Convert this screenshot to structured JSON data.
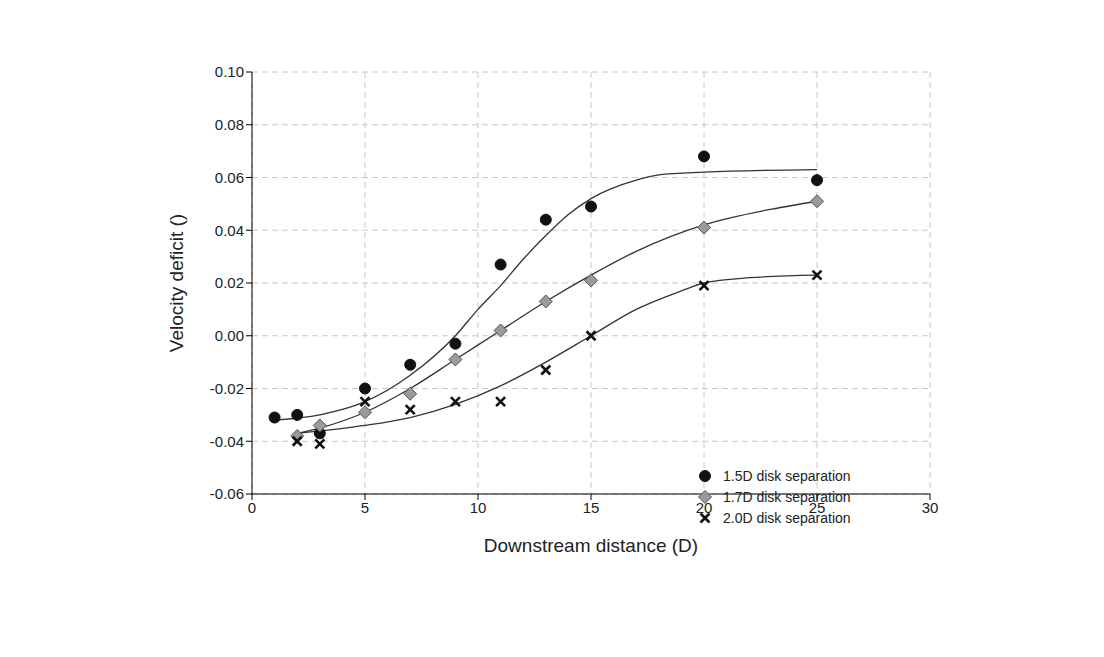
{
  "chart_data": {
    "type": "scatter",
    "x_label": "Downstream distance (D)",
    "y_label": "Velocity deficit ()",
    "xlim": [
      0,
      30
    ],
    "xticks": [
      0,
      5,
      10,
      15,
      20,
      25,
      30
    ],
    "ylim": [
      -0.06,
      0.1
    ],
    "yticks": [
      -0.06,
      -0.04,
      -0.02,
      {
        "value": 0,
        "label": "0.00"
      },
      0.02,
      0.04,
      0.06,
      0.08,
      {
        "value": 0.1,
        "label": "0.10"
      }
    ],
    "grid": true,
    "legend": "lower right",
    "series": [
      {
        "name": "1.5D disk separation",
        "color": "#111111",
        "marker": "circle",
        "x": [
          1,
          2,
          3,
          5,
          7,
          9,
          11,
          13,
          15,
          20,
          25
        ],
        "values": [
          -0.031,
          -0.03,
          -0.037,
          -0.02,
          -0.011,
          -0.003,
          0.027,
          0.044,
          0.049,
          0.068,
          0.059
        ],
        "fit_x": [
          1,
          3,
          5,
          7,
          9,
          10,
          11,
          12,
          13,
          14,
          15,
          17,
          18,
          20,
          25
        ],
        "fit_values": [
          -0.032,
          -0.03,
          -0.025,
          -0.015,
          0.0,
          0.01,
          0.019,
          0.029,
          0.038,
          0.046,
          0.052,
          0.059,
          0.061,
          0.062,
          0.063
        ]
      },
      {
        "name": "1.7D disk separation",
        "color": "#9a9a9a",
        "marker": "diamond",
        "x": [
          2,
          3,
          5,
          7,
          9,
          11,
          13,
          15,
          20,
          25
        ],
        "values": [
          -0.038,
          -0.034,
          -0.029,
          -0.022,
          -0.009,
          0.002,
          0.013,
          0.021,
          0.041,
          0.051
        ],
        "fit_x": [
          2,
          3,
          5,
          7,
          9,
          11,
          13,
          15,
          17,
          20,
          23,
          25
        ],
        "fit_values": [
          -0.037,
          -0.035,
          -0.029,
          -0.02,
          -0.009,
          0.002,
          0.013,
          0.023,
          0.032,
          0.042,
          0.048,
          0.051
        ]
      },
      {
        "name": "2.0D disk separation",
        "color": "#111111",
        "marker": "x",
        "x": [
          2,
          3,
          5,
          7,
          9,
          11,
          13,
          15,
          20,
          25
        ],
        "values": [
          -0.04,
          -0.041,
          -0.025,
          -0.028,
          -0.025,
          -0.025,
          -0.013,
          0.0,
          0.019,
          0.023
        ],
        "fit_x": [
          2,
          5,
          7,
          9,
          11,
          13,
          15,
          17,
          19,
          20,
          22,
          25
        ],
        "fit_values": [
          -0.037,
          -0.034,
          -0.031,
          -0.026,
          -0.019,
          -0.01,
          0.0,
          0.01,
          0.017,
          0.02,
          0.022,
          0.023
        ]
      }
    ]
  }
}
